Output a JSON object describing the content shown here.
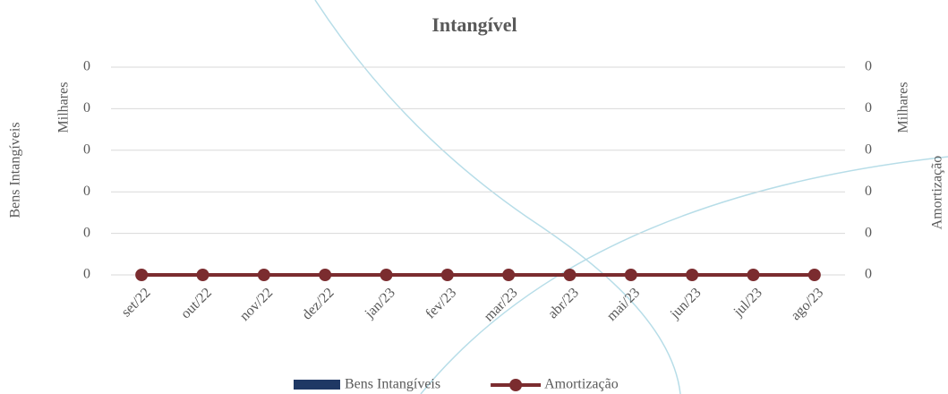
{
  "chart_data": {
    "type": "bar",
    "title": "Intangível",
    "categories": [
      "set/22",
      "out/22",
      "nov/22",
      "dez/22",
      "jan/23",
      "fev/23",
      "mar/23",
      "abr/23",
      "mai/23",
      "jun/23",
      "jul/23",
      "ago/23"
    ],
    "series": [
      {
        "name": "Bens Intangíveis",
        "type": "bar",
        "color": "#1f3864",
        "values": [
          0,
          0,
          0,
          0,
          0,
          0,
          0,
          0,
          0,
          0,
          0,
          0
        ]
      },
      {
        "name": "Amortização",
        "type": "line",
        "axis": "y2",
        "color": "#7b2c2f",
        "values": [
          0,
          0,
          0,
          0,
          0,
          0,
          0,
          0,
          0,
          0,
          0,
          0
        ]
      }
    ],
    "ylabel": "Bens Intangíveis",
    "y_display_unit": "Milhares",
    "y2label": "Amortização",
    "y2_display_unit": "Milhares",
    "ylim": [
      0,
      1
    ],
    "yticks": [
      {
        "value": 0,
        "label": "0"
      },
      {
        "value": 0.2,
        "label": "0"
      },
      {
        "value": 0.4,
        "label": "0"
      },
      {
        "value": 0.6,
        "label": "0"
      },
      {
        "value": 0.8,
        "label": "0"
      },
      {
        "value": 1,
        "label": "0"
      }
    ],
    "y2lim": [
      0,
      1
    ],
    "y2ticks": [
      {
        "value": 0,
        "label": "0"
      },
      {
        "value": 0.2,
        "label": "0"
      },
      {
        "value": 0.4,
        "label": "0"
      },
      {
        "value": 0.6,
        "label": "0"
      },
      {
        "value": 0.8,
        "label": "0"
      },
      {
        "value": 1,
        "label": "0"
      }
    ],
    "grid": true,
    "legend": "bottom"
  }
}
